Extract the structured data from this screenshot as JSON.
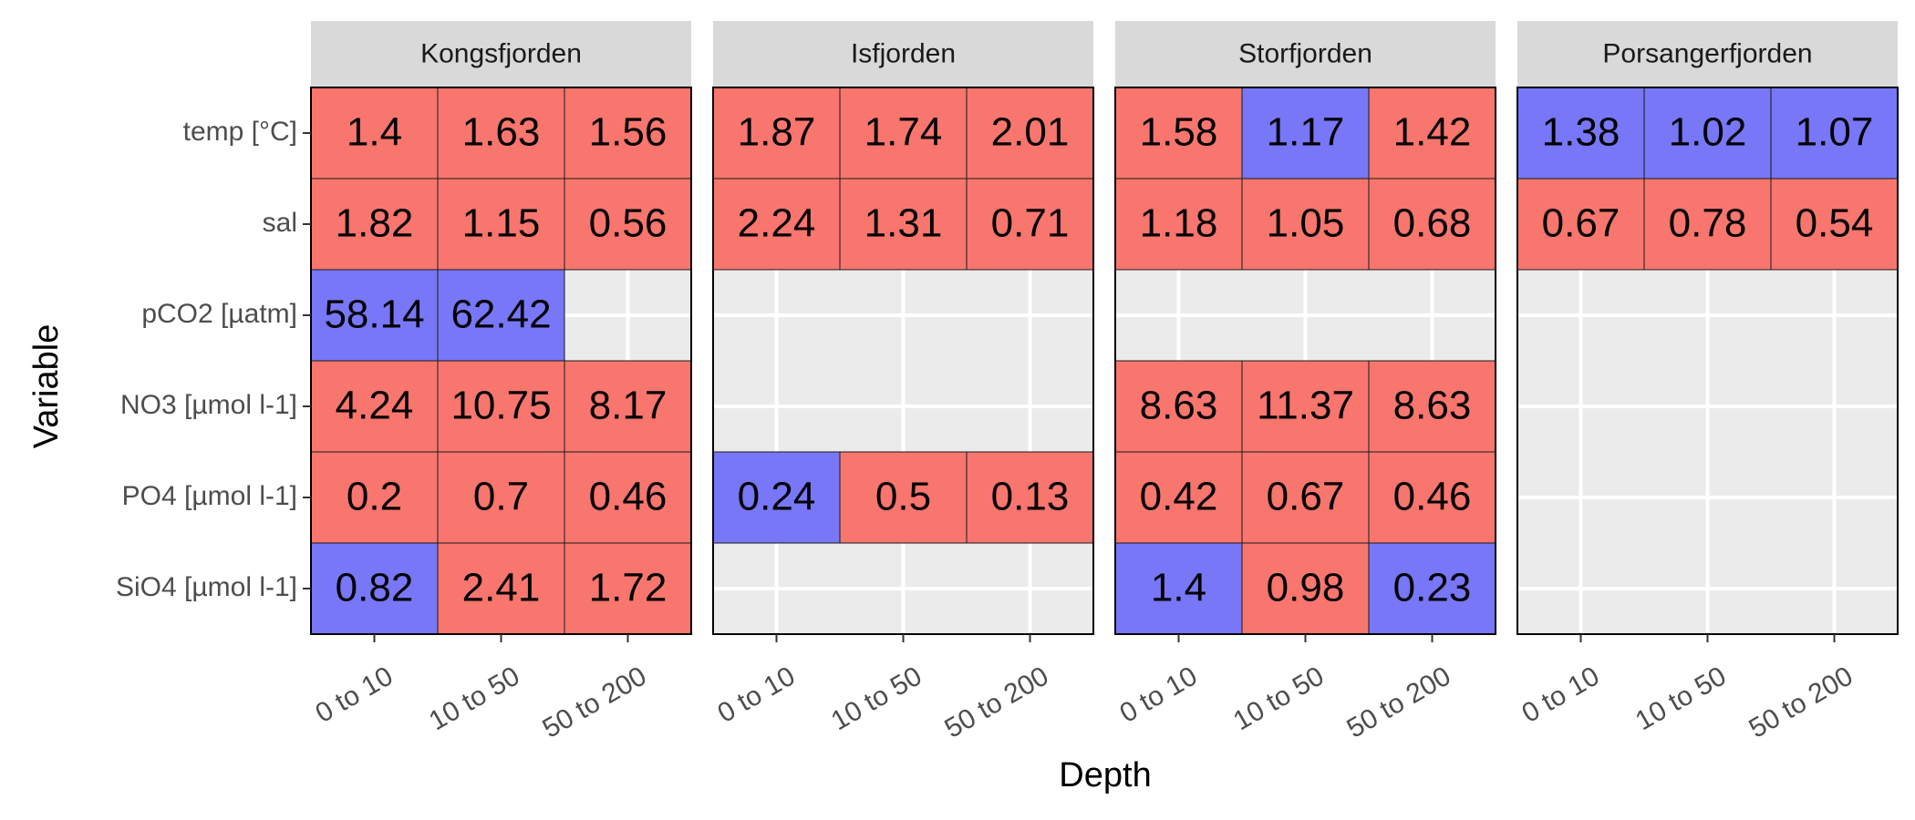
{
  "chart_data": {
    "type": "heatmap",
    "xlabel": "Depth",
    "ylabel": "Variable",
    "x_categories": [
      "0 to 10",
      "10 to 50",
      "50 to 200"
    ],
    "y_categories": [
      "temp [°C]",
      "sal",
      "pCO2 [µatm]",
      "NO3 [µmol l-1]",
      "PO4 [µmol l-1]",
      "SiO4 [µmol l-1]"
    ],
    "fill_colors": {
      "red": "#F8766D",
      "blue": "#7777F8"
    },
    "panel_background": "#EBEBEB",
    "strip_background": "#D9D9D9",
    "panels": [
      {
        "name": "Kongsfjorden",
        "cells": [
          [
            {
              "v": "1.4",
              "c": "red"
            },
            {
              "v": "1.63",
              "c": "red"
            },
            {
              "v": "1.56",
              "c": "red"
            }
          ],
          [
            {
              "v": "1.82",
              "c": "red"
            },
            {
              "v": "1.15",
              "c": "red"
            },
            {
              "v": "0.56",
              "c": "red"
            }
          ],
          [
            {
              "v": "58.14",
              "c": "blue"
            },
            {
              "v": "62.42",
              "c": "blue"
            },
            null
          ],
          [
            {
              "v": "4.24",
              "c": "red"
            },
            {
              "v": "10.75",
              "c": "red"
            },
            {
              "v": "8.17",
              "c": "red"
            }
          ],
          [
            {
              "v": "0.2",
              "c": "red"
            },
            {
              "v": "0.7",
              "c": "red"
            },
            {
              "v": "0.46",
              "c": "red"
            }
          ],
          [
            {
              "v": "0.82",
              "c": "blue"
            },
            {
              "v": "2.41",
              "c": "red"
            },
            {
              "v": "1.72",
              "c": "red"
            }
          ]
        ]
      },
      {
        "name": "Isfjorden",
        "cells": [
          [
            {
              "v": "1.87",
              "c": "red"
            },
            {
              "v": "1.74",
              "c": "red"
            },
            {
              "v": "2.01",
              "c": "red"
            }
          ],
          [
            {
              "v": "2.24",
              "c": "red"
            },
            {
              "v": "1.31",
              "c": "red"
            },
            {
              "v": "0.71",
              "c": "red"
            }
          ],
          [
            null,
            null,
            null
          ],
          [
            null,
            null,
            null
          ],
          [
            {
              "v": "0.24",
              "c": "blue"
            },
            {
              "v": "0.5",
              "c": "red"
            },
            {
              "v": "0.13",
              "c": "red"
            }
          ],
          [
            null,
            null,
            null
          ]
        ]
      },
      {
        "name": "Storfjorden",
        "cells": [
          [
            {
              "v": "1.58",
              "c": "red"
            },
            {
              "v": "1.17",
              "c": "blue"
            },
            {
              "v": "1.42",
              "c": "red"
            }
          ],
          [
            {
              "v": "1.18",
              "c": "red"
            },
            {
              "v": "1.05",
              "c": "red"
            },
            {
              "v": "0.68",
              "c": "red"
            }
          ],
          [
            null,
            null,
            null
          ],
          [
            {
              "v": "8.63",
              "c": "red"
            },
            {
              "v": "11.37",
              "c": "red"
            },
            {
              "v": "8.63",
              "c": "red"
            }
          ],
          [
            {
              "v": "0.42",
              "c": "red"
            },
            {
              "v": "0.67",
              "c": "red"
            },
            {
              "v": "0.46",
              "c": "red"
            }
          ],
          [
            {
              "v": "1.4",
              "c": "blue"
            },
            {
              "v": "0.98",
              "c": "red"
            },
            {
              "v": "0.23",
              "c": "blue"
            }
          ]
        ]
      },
      {
        "name": "Porsangerfjorden",
        "cells": [
          [
            {
              "v": "1.38",
              "c": "blue"
            },
            {
              "v": "1.02",
              "c": "blue"
            },
            {
              "v": "1.07",
              "c": "blue"
            }
          ],
          [
            {
              "v": "0.67",
              "c": "red"
            },
            {
              "v": "0.78",
              "c": "red"
            },
            {
              "v": "0.54",
              "c": "red"
            }
          ],
          [
            null,
            null,
            null
          ],
          [
            null,
            null,
            null
          ],
          [
            null,
            null,
            null
          ],
          [
            null,
            null,
            null
          ]
        ]
      }
    ]
  }
}
